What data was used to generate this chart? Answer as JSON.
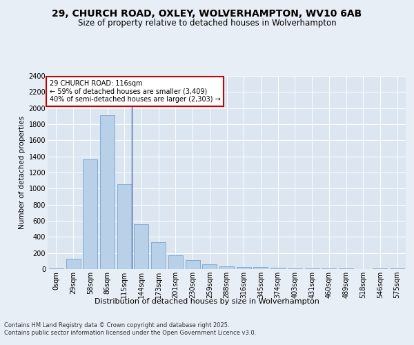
{
  "title1": "29, CHURCH ROAD, OXLEY, WOLVERHAMPTON, WV10 6AB",
  "title2": "Size of property relative to detached houses in Wolverhampton",
  "xlabel": "Distribution of detached houses by size in Wolverhampton",
  "ylabel": "Number of detached properties",
  "categories": [
    "0sqm",
    "29sqm",
    "58sqm",
    "86sqm",
    "115sqm",
    "144sqm",
    "173sqm",
    "201sqm",
    "230sqm",
    "259sqm",
    "288sqm",
    "316sqm",
    "345sqm",
    "374sqm",
    "403sqm",
    "431sqm",
    "460sqm",
    "489sqm",
    "518sqm",
    "546sqm",
    "575sqm"
  ],
  "values": [
    5,
    130,
    1360,
    1910,
    1055,
    560,
    335,
    170,
    110,
    60,
    35,
    30,
    25,
    15,
    5,
    10,
    5,
    5,
    0,
    5,
    10
  ],
  "bar_color": "#b8d0e8",
  "bar_edge_color": "#6699cc",
  "vline_index": 4,
  "vline_color": "#4466aa",
  "annotation_text": "29 CHURCH ROAD: 116sqm\n← 59% of detached houses are smaller (3,409)\n40% of semi-detached houses are larger (2,303) →",
  "annotation_box_color": "#ffffff",
  "annotation_box_edge": "#cc0000",
  "ylim": [
    0,
    2400
  ],
  "yticks": [
    0,
    200,
    400,
    600,
    800,
    1000,
    1200,
    1400,
    1600,
    1800,
    2000,
    2200,
    2400
  ],
  "background_color": "#e8eef5",
  "plot_bg_color": "#dce6f0",
  "footer": "Contains HM Land Registry data © Crown copyright and database right 2025.\nContains public sector information licensed under the Open Government Licence v3.0.",
  "title1_fontsize": 10,
  "title2_fontsize": 8.5,
  "xlabel_fontsize": 8,
  "ylabel_fontsize": 7.5,
  "tick_fontsize": 7,
  "footer_fontsize": 6,
  "annot_fontsize": 7
}
